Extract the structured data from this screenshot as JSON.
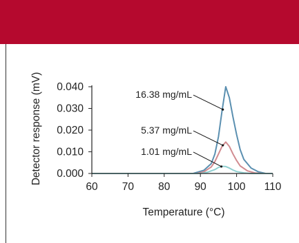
{
  "header": {
    "color": "#b5092e"
  },
  "chart_data": {
    "type": "line",
    "xlabel": "Temperature (°C)",
    "ylabel": "Detector response (mV)",
    "xlim": [
      60,
      110
    ],
    "ylim": [
      0,
      0.04
    ],
    "xticks": [
      "60",
      "70",
      "80",
      "90",
      "100",
      "110"
    ],
    "yticks": [
      "0.000",
      "0.010",
      "0.020",
      "0.030",
      "0.040"
    ],
    "grid": false,
    "series": [
      {
        "color": "#5a8fb0",
        "x": [
          60,
          88,
          91,
          93,
          94,
          95,
          96,
          97,
          98,
          99,
          100,
          101,
          102,
          104,
          106,
          108,
          110
        ],
        "y": [
          0,
          0,
          0.0015,
          0.0045,
          0.009,
          0.017,
          0.029,
          0.04,
          0.035,
          0.026,
          0.018,
          0.011,
          0.0065,
          0.0025,
          0.0008,
          0,
          0
        ]
      },
      {
        "color": "#d18b90",
        "x": [
          60,
          89,
          91,
          93,
          94,
          95,
          96,
          97,
          98,
          99,
          100,
          101,
          103,
          105,
          107,
          110
        ],
        "y": [
          0,
          0,
          0.0008,
          0.003,
          0.0055,
          0.009,
          0.0125,
          0.0145,
          0.0125,
          0.009,
          0.006,
          0.0035,
          0.0012,
          0.0003,
          0,
          0
        ]
      },
      {
        "color": "#8fcfd0",
        "x": [
          60,
          90,
          92,
          94,
          95,
          96,
          97,
          98,
          99,
          100,
          102,
          104,
          110
        ],
        "y": [
          0,
          0,
          0.0006,
          0.0018,
          0.0028,
          0.0033,
          0.0032,
          0.0025,
          0.0016,
          0.0009,
          0.0003,
          0,
          0
        ]
      }
    ],
    "annotations": [
      {
        "text": "16.38 mg/mL",
        "x": 96.2,
        "y": 0.0295
      },
      {
        "text": "5.37 mg/mL",
        "x": 96.2,
        "y": 0.013
      },
      {
        "text": "1.01 mg/mL",
        "x": 95.8,
        "y": 0.0032
      }
    ]
  }
}
